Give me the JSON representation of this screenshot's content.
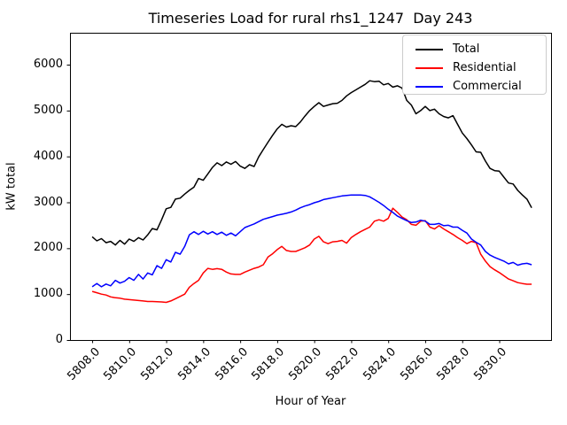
{
  "chart_data": {
    "type": "line",
    "title": "Timeseries Load for rural rhs1_1247  Day 243",
    "xlabel": "Hour of Year",
    "ylabel": "kW total",
    "xlim": [
      5806.8,
      5832.8
    ],
    "ylim": [
      0,
      6695
    ],
    "grid": false,
    "legend_position": "upper right",
    "xticks": [
      5808,
      5810,
      5812,
      5814,
      5816,
      5818,
      5820,
      5822,
      5824,
      5826,
      5828,
      5830
    ],
    "xtick_labels": [
      "5808.0",
      "5810.0",
      "5812.0",
      "5814.0",
      "5816.0",
      "5818.0",
      "5820.0",
      "5822.0",
      "5824.0",
      "5826.0",
      "5828.0",
      "5830.0"
    ],
    "yticks": [
      0,
      1000,
      2000,
      3000,
      4000,
      5000,
      6000
    ],
    "ytick_labels": [
      "0",
      "1000",
      "2000",
      "3000",
      "4000",
      "5000",
      "6000"
    ],
    "x": [
      5808.0,
      5808.25,
      5808.5,
      5808.75,
      5809.0,
      5809.25,
      5809.5,
      5809.75,
      5810.0,
      5810.25,
      5810.5,
      5810.75,
      5811.0,
      5811.25,
      5811.5,
      5811.75,
      5812.0,
      5812.25,
      5812.5,
      5812.75,
      5813.0,
      5813.25,
      5813.5,
      5813.75,
      5814.0,
      5814.25,
      5814.5,
      5814.75,
      5815.0,
      5815.25,
      5815.5,
      5815.75,
      5816.0,
      5816.25,
      5816.5,
      5816.75,
      5817.0,
      5817.25,
      5817.5,
      5817.75,
      5818.0,
      5818.25,
      5818.5,
      5818.75,
      5819.0,
      5819.25,
      5819.5,
      5819.75,
      5820.0,
      5820.25,
      5820.5,
      5820.75,
      5821.0,
      5821.25,
      5821.5,
      5821.75,
      5822.0,
      5822.25,
      5822.5,
      5822.75,
      5823.0,
      5823.25,
      5823.5,
      5823.75,
      5824.0,
      5824.25,
      5824.5,
      5824.75,
      5825.0,
      5825.25,
      5825.5,
      5825.75,
      5826.0,
      5826.25,
      5826.5,
      5826.75,
      5827.0,
      5827.25,
      5827.5,
      5827.75,
      5828.0,
      5828.25,
      5828.5,
      5828.75,
      5829.0,
      5829.25,
      5829.5,
      5829.75,
      5830.0,
      5830.25,
      5830.5,
      5830.75,
      5831.0,
      5831.25,
      5831.5,
      5831.75
    ],
    "series": [
      {
        "name": "Total",
        "color": "#000000",
        "values": [
          2250,
          2160,
          2210,
          2120,
          2150,
          2070,
          2170,
          2090,
          2200,
          2150,
          2230,
          2180,
          2290,
          2430,
          2400,
          2620,
          2860,
          2890,
          3070,
          3090,
          3180,
          3260,
          3330,
          3520,
          3480,
          3620,
          3760,
          3860,
          3800,
          3880,
          3830,
          3890,
          3790,
          3740,
          3820,
          3780,
          3990,
          4150,
          4310,
          4460,
          4600,
          4700,
          4640,
          4670,
          4650,
          4750,
          4880,
          5000,
          5090,
          5170,
          5090,
          5120,
          5150,
          5160,
          5220,
          5320,
          5390,
          5450,
          5510,
          5570,
          5650,
          5630,
          5640,
          5560,
          5590,
          5510,
          5540,
          5490,
          5220,
          5120,
          4930,
          5000,
          5090,
          5000,
          5030,
          4930,
          4870,
          4840,
          4890,
          4700,
          4510,
          4390,
          4250,
          4100,
          4090,
          3900,
          3740,
          3690,
          3680,
          3550,
          3420,
          3400,
          3260,
          3160,
          3070,
          2880
        ]
      },
      {
        "name": "Residential",
        "color": "#ff0000",
        "values": [
          1060,
          1030,
          1000,
          980,
          940,
          920,
          910,
          890,
          880,
          870,
          860,
          850,
          840,
          840,
          835,
          830,
          820,
          850,
          900,
          950,
          1000,
          1150,
          1230,
          1300,
          1460,
          1560,
          1540,
          1555,
          1540,
          1480,
          1440,
          1430,
          1430,
          1480,
          1520,
          1560,
          1590,
          1640,
          1810,
          1880,
          1970,
          2040,
          1950,
          1930,
          1930,
          1970,
          2010,
          2070,
          2200,
          2260,
          2140,
          2100,
          2140,
          2150,
          2170,
          2110,
          2230,
          2300,
          2360,
          2410,
          2460,
          2590,
          2620,
          2590,
          2650,
          2870,
          2780,
          2680,
          2620,
          2520,
          2500,
          2590,
          2600,
          2460,
          2420,
          2490,
          2420,
          2360,
          2300,
          2230,
          2170,
          2100,
          2150,
          2120,
          1870,
          1720,
          1600,
          1530,
          1470,
          1400,
          1330,
          1290,
          1250,
          1230,
          1215,
          1215
        ]
      },
      {
        "name": "Commercial",
        "color": "#0000ff",
        "values": [
          1160,
          1230,
          1160,
          1220,
          1180,
          1300,
          1240,
          1280,
          1360,
          1300,
          1430,
          1330,
          1460,
          1420,
          1620,
          1560,
          1750,
          1700,
          1910,
          1870,
          2040,
          2290,
          2360,
          2300,
          2370,
          2310,
          2360,
          2300,
          2350,
          2280,
          2330,
          2270,
          2360,
          2450,
          2490,
          2530,
          2580,
          2630,
          2660,
          2690,
          2720,
          2740,
          2760,
          2790,
          2830,
          2880,
          2920,
          2950,
          2990,
          3020,
          3060,
          3080,
          3100,
          3120,
          3140,
          3150,
          3160,
          3160,
          3160,
          3150,
          3120,
          3060,
          3000,
          2930,
          2850,
          2780,
          2700,
          2650,
          2600,
          2560,
          2570,
          2610,
          2590,
          2520,
          2520,
          2540,
          2490,
          2500,
          2460,
          2460,
          2390,
          2330,
          2200,
          2130,
          2070,
          1930,
          1850,
          1800,
          1760,
          1720,
          1660,
          1690,
          1630,
          1660,
          1670,
          1640
        ]
      }
    ]
  }
}
